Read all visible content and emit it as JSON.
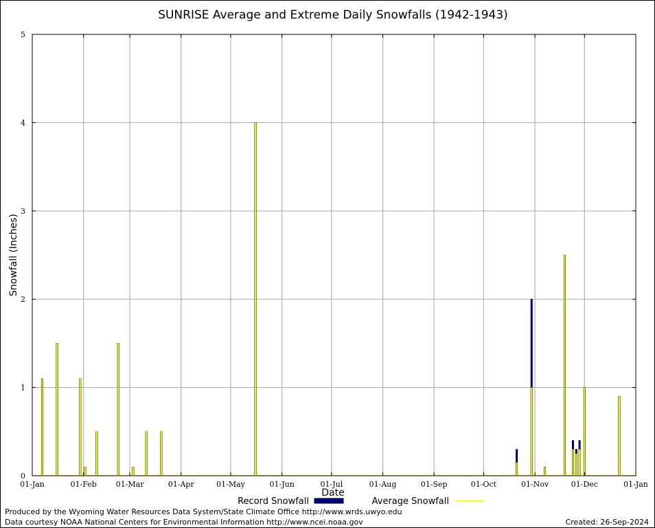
{
  "chart_data": {
    "type": "bar",
    "title": "SUNRISE Average and Extreme Daily Snowfalls (1942-1943)",
    "xlabel": "Date",
    "ylabel": "Snowfall (Inches)",
    "ylim": [
      0,
      5
    ],
    "yticks": [
      "0",
      "1",
      "2",
      "3",
      "4",
      "5"
    ],
    "xticks": [
      "01-Jan",
      "01-Feb",
      "01-Mar",
      "01-Apr",
      "01-May",
      "01-Jun",
      "01-Jul",
      "01-Aug",
      "01-Sep",
      "01-Oct",
      "01-Nov",
      "01-Dec",
      "01-Jan"
    ],
    "xtick_days": [
      1,
      32,
      60,
      91,
      121,
      152,
      182,
      213,
      244,
      274,
      305,
      335,
      366
    ],
    "grid": true,
    "legend_position": "bottom",
    "series": [
      {
        "name": "Record Snowfall",
        "color": "#00007f",
        "points": [
          {
            "day": 7,
            "value": 1.1
          },
          {
            "day": 16,
            "value": 1.5
          },
          {
            "day": 30,
            "value": 1.1
          },
          {
            "day": 33,
            "value": 0.1
          },
          {
            "day": 40,
            "value": 0.5
          },
          {
            "day": 53,
            "value": 1.5
          },
          {
            "day": 62,
            "value": 0.1
          },
          {
            "day": 70,
            "value": 0.5
          },
          {
            "day": 79,
            "value": 0.5
          },
          {
            "day": 136,
            "value": 4.0
          },
          {
            "day": 294,
            "value": 0.3
          },
          {
            "day": 303,
            "value": 2.0
          },
          {
            "day": 311,
            "value": 0.1
          },
          {
            "day": 323,
            "value": 2.5
          },
          {
            "day": 328,
            "value": 0.4
          },
          {
            "day": 330,
            "value": 0.3
          },
          {
            "day": 332,
            "value": 0.4
          },
          {
            "day": 335,
            "value": 1.0
          },
          {
            "day": 356,
            "value": 0.9
          }
        ]
      },
      {
        "name": "Average Snowfall",
        "color": "#ffff00",
        "points": [
          {
            "day": 7,
            "value": 1.1
          },
          {
            "day": 16,
            "value": 1.5
          },
          {
            "day": 30,
            "value": 1.1
          },
          {
            "day": 33,
            "value": 0.1
          },
          {
            "day": 40,
            "value": 0.5
          },
          {
            "day": 53,
            "value": 1.5
          },
          {
            "day": 62,
            "value": 0.1
          },
          {
            "day": 70,
            "value": 0.5
          },
          {
            "day": 79,
            "value": 0.5
          },
          {
            "day": 136,
            "value": 4.0
          },
          {
            "day": 294,
            "value": 0.15
          },
          {
            "day": 303,
            "value": 1.0
          },
          {
            "day": 311,
            "value": 0.1
          },
          {
            "day": 323,
            "value": 2.5
          },
          {
            "day": 328,
            "value": 0.3
          },
          {
            "day": 330,
            "value": 0.25
          },
          {
            "day": 332,
            "value": 0.3
          },
          {
            "day": 335,
            "value": 1.0
          },
          {
            "day": 356,
            "value": 0.9
          }
        ]
      }
    ]
  },
  "footer": {
    "produced_by": "Produced by the Wyoming Water Resources Data System/State Climate Office http://www.wrds.uwyo.edu",
    "data_courtesy": "Data courtesy NOAA National Centers for Environmental Information http://www.ncei.noaa.gov",
    "created": "Created:  26-Sep-2024"
  }
}
